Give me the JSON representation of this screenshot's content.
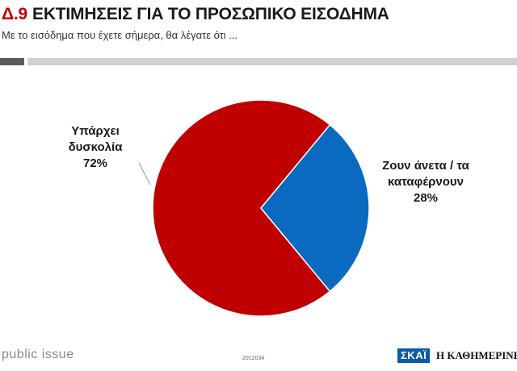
{
  "header": {
    "code": "Δ.9",
    "title": "ΕΚΤΙΜΗΣΕΙΣ ΓΙΑ ΤΟ ΠΡΟΣΩΠΙΚΟ ΕΙΣΟΔΗΜΑ",
    "subtitle": "Με το εισόδημα που έχετε σήμερα, θα λέγατε ότι ..."
  },
  "chart_data": {
    "type": "pie",
    "slices": [
      {
        "label_lines": [
          "Υπάρχει",
          "δυσκολία"
        ],
        "value": 72,
        "value_label": "72%",
        "color": "#c00000"
      },
      {
        "label_lines": [
          "Ζουν άνετα / τα",
          "καταφέρνουν"
        ],
        "value": 28,
        "value_label": "28%",
        "color": "#0a6ac0"
      }
    ],
    "start": "3 o'clock",
    "direction": "clockwise from the small slice",
    "legend": "none",
    "data_labels": "outside with leader lines"
  },
  "footer": {
    "brand": "public issue",
    "code": "2012034",
    "logo_skai": "ΣΚΑΪ",
    "logo_kathimerini": "Η ΚΑΘΗΜΕΡΙΝΗ"
  }
}
